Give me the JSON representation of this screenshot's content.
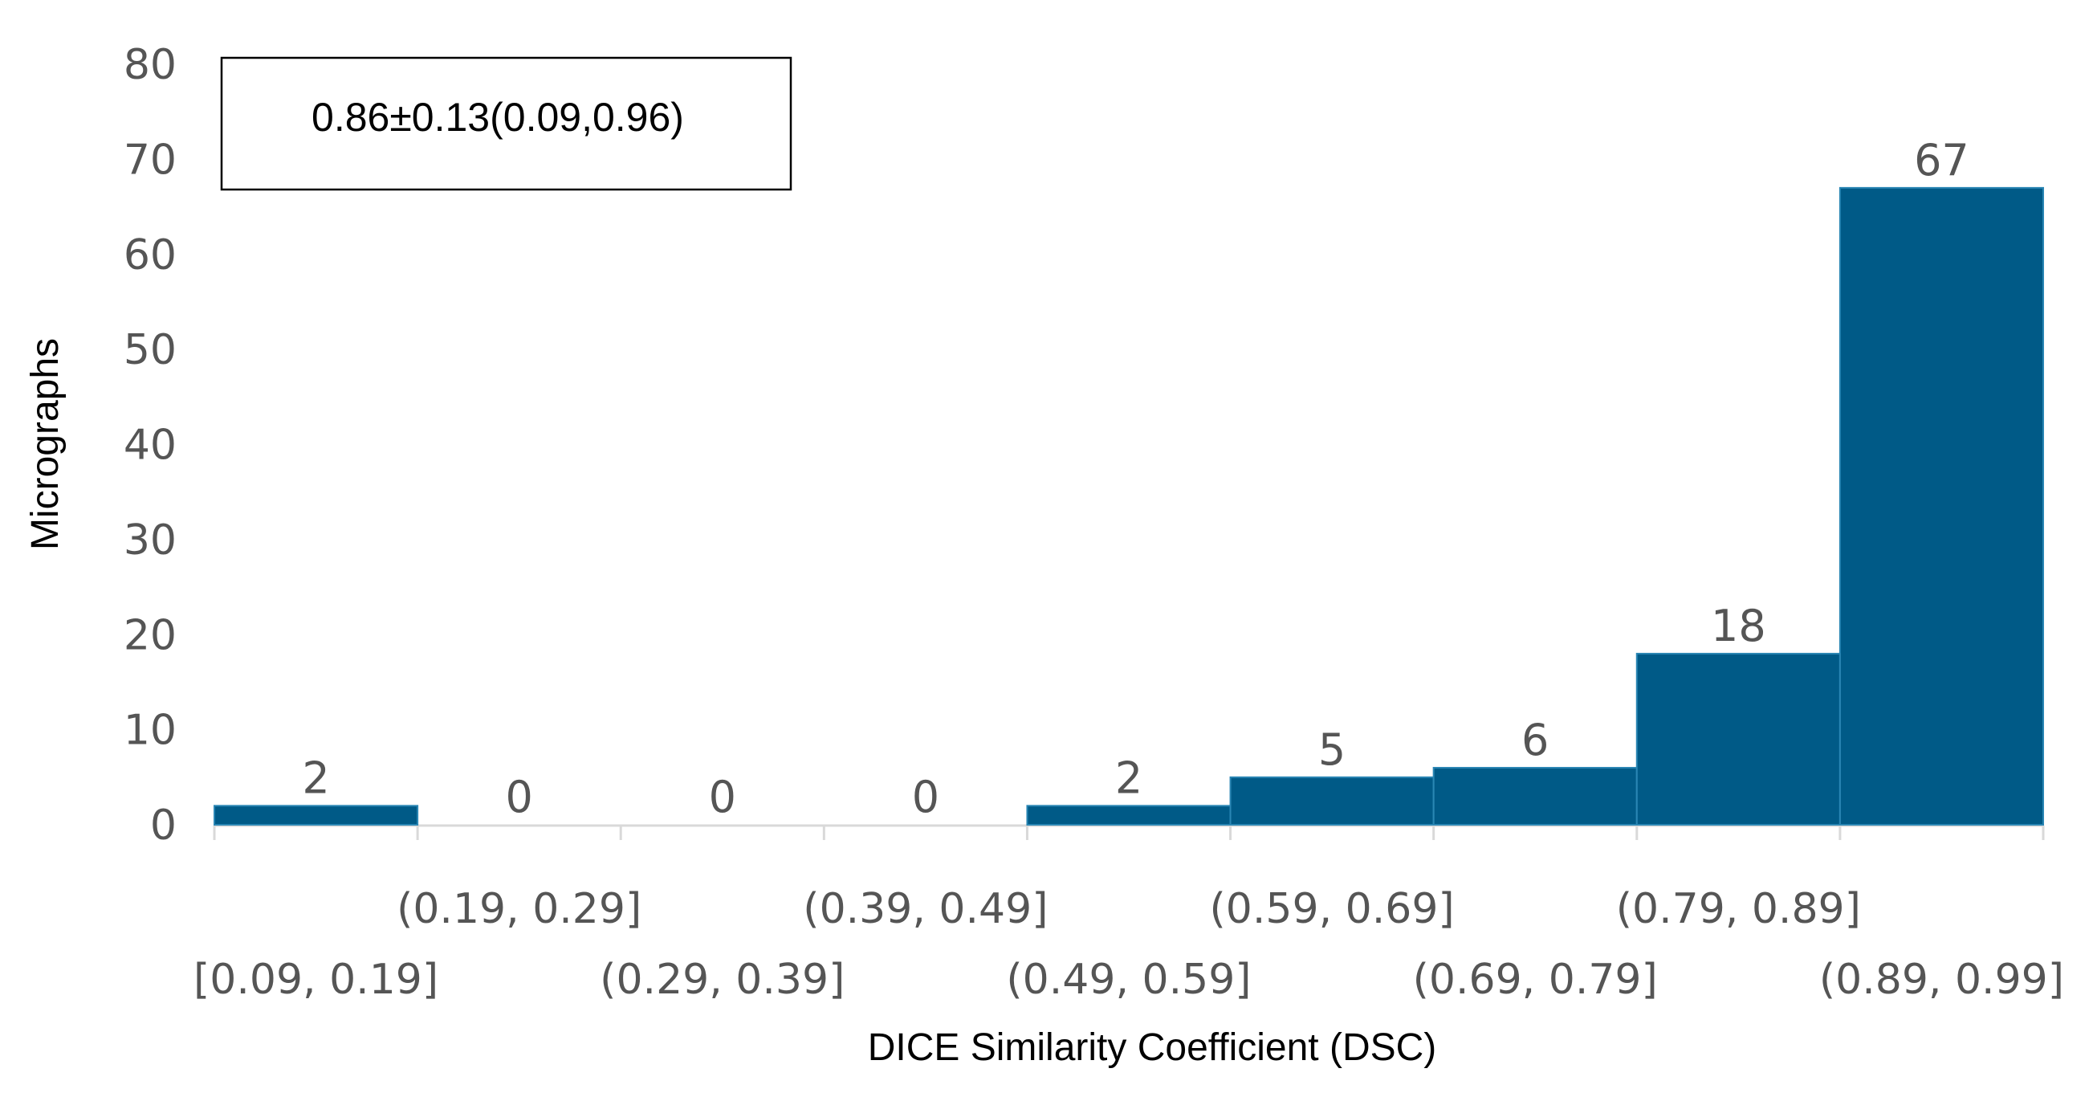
{
  "chart_data": {
    "type": "bar",
    "title": "",
    "xlabel": "DICE Similarity Coefficient (DSC)",
    "ylabel": "Micrographs",
    "ylim": [
      0,
      80
    ],
    "yticks": [
      0,
      10,
      20,
      30,
      40,
      50,
      60,
      70,
      80
    ],
    "categories": [
      "[0.09, 0.19]",
      "(0.19, 0.29]",
      "(0.29, 0.39]",
      "(0.39, 0.49]",
      "(0.49, 0.59]",
      "(0.59, 0.69]",
      "(0.69, 0.79]",
      "(0.79, 0.89]",
      "(0.89, 0.99]"
    ],
    "values": [
      2,
      0,
      0,
      0,
      2,
      5,
      6,
      18,
      67
    ],
    "annotation": "0.86±0.13(0.09,0.96)",
    "grid": false,
    "colors": {
      "bar": "#005a87",
      "bar_edge": "#2a86b4",
      "axis": "#d9d9d9",
      "tick_text": "#555555",
      "title_text": "#000000"
    }
  }
}
